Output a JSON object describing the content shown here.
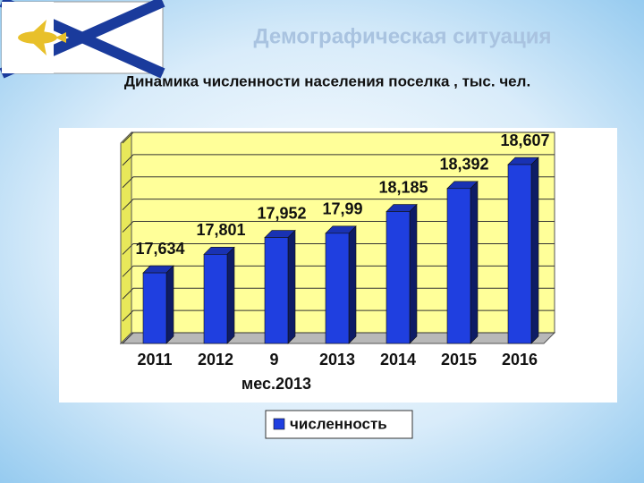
{
  "chart_data": {
    "type": "bar3d",
    "title": "Демографическая ситуация",
    "subtitle": "Динамика численности населения поселка , тыс. чел.",
    "categories": [
      "2011",
      "2012",
      "9 мес.2013",
      "2013",
      "2014",
      "2015",
      "2016"
    ],
    "series": [
      {
        "name": "численность",
        "color": "#1f3fe0",
        "values": [
          17.634,
          17.801,
          17.952,
          17.99,
          18.185,
          18.392,
          18.607
        ],
        "value_labels": [
          "17,634",
          "17,801",
          "17,952",
          "17,99",
          "18,185",
          "18,392",
          "18,607"
        ]
      }
    ],
    "ylim": [
      17,
      18.8
    ],
    "yticks": [
      17,
      17.2,
      17.4,
      17.6,
      17.8,
      18,
      18.2,
      18.4,
      18.6,
      18.8
    ],
    "y_tick_labels": false,
    "grid": true,
    "legend": "bottom"
  }
}
